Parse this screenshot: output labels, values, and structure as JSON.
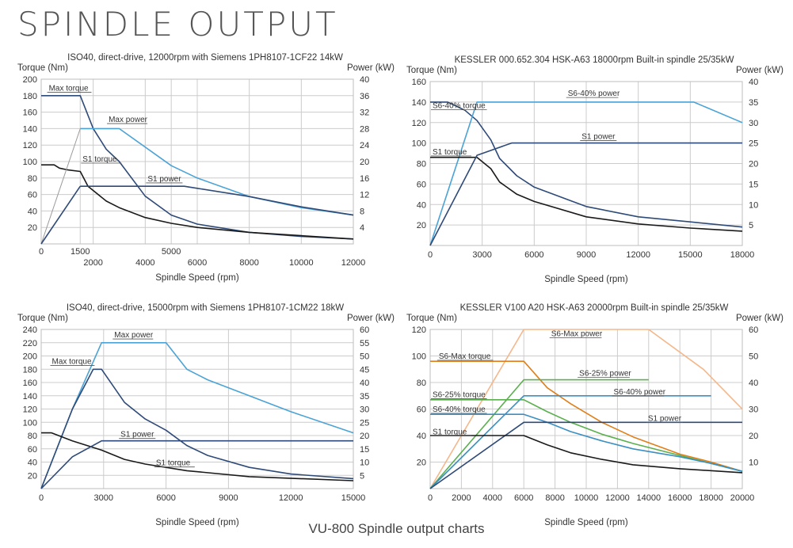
{
  "page": {
    "title": "SPINDLE OUTPUT",
    "caption": "VU-800 Spindle output charts"
  },
  "colors": {
    "grid": "#cccccc",
    "frame": "#bdbdbd",
    "label_line": "#555555",
    "dark": "#1a1a1a",
    "navy": "#2e4a78",
    "sky": "#4aa3d6",
    "teal": "#3b8fc2",
    "green": "#59b04c",
    "orange": "#e07f1a",
    "peach": "#f5b78a",
    "gray": "#9a9a9a"
  },
  "chart_data": [
    {
      "type": "line",
      "title": "ISO40, direct-drive,  12000rpm with Siemens 1PH8107-1CF22 14kW",
      "ylabel": "Torque (Nm)",
      "y2label": "Power (kW)",
      "xlabel": "Spindle  Speed  (rpm)",
      "xlim": [
        0,
        12000
      ],
      "ylim": [
        0,
        200
      ],
      "y2lim": [
        0,
        40
      ],
      "yticks": [
        20,
        40,
        60,
        80,
        100,
        120,
        140,
        160,
        180,
        200
      ],
      "y2ticks": [
        4,
        8,
        12,
        16,
        20,
        24,
        28,
        32,
        36,
        40
      ],
      "xticks_upper": [
        0,
        1500,
        5000
      ],
      "xticks_lower": [
        2000,
        4000,
        6000,
        8000,
        10000,
        12000
      ],
      "series": [
        {
          "name": "Max torque",
          "axis": "left",
          "color": "navy",
          "points": [
            [
              0,
              180
            ],
            [
              1500,
              180
            ],
            [
              2000,
              140
            ],
            [
              2500,
              115
            ],
            [
              3000,
              100
            ],
            [
              4000,
              58
            ],
            [
              5000,
              35
            ],
            [
              6000,
              24
            ],
            [
              8000,
              14
            ],
            [
              10000,
              9
            ],
            [
              12000,
              6
            ]
          ]
        },
        {
          "name": "Max power",
          "axis": "right",
          "color": "sky",
          "points": [
            [
              1500,
              28
            ],
            [
              3000,
              28
            ],
            [
              5000,
              19
            ],
            [
              6000,
              16
            ],
            [
              8000,
              11.5
            ],
            [
              10000,
              8.8
            ],
            [
              12000,
              7
            ]
          ]
        },
        {
          "name": "S1 torque",
          "axis": "left",
          "color": "dark",
          "points": [
            [
              0,
              96
            ],
            [
              500,
              96
            ],
            [
              700,
              92
            ],
            [
              1000,
              90
            ],
            [
              1500,
              88
            ],
            [
              1800,
              70
            ],
            [
              2500,
              52
            ],
            [
              3000,
              44
            ],
            [
              4000,
              32
            ],
            [
              5000,
              25
            ],
            [
              6000,
              20
            ],
            [
              8000,
              14
            ],
            [
              10000,
              10
            ],
            [
              12000,
              6
            ]
          ]
        },
        {
          "name": "S1 power",
          "axis": "right",
          "color": "navy",
          "points": [
            [
              1500,
              14
            ],
            [
              5500,
              14
            ],
            [
              6000,
              13.5
            ],
            [
              8000,
              11.5
            ],
            [
              10000,
              9
            ],
            [
              12000,
              7
            ]
          ]
        },
        {
          "name": "",
          "axis": "right",
          "color": "gray",
          "points": [
            [
              0,
              0
            ],
            [
              1500,
              28
            ]
          ]
        },
        {
          "name": "",
          "axis": "right",
          "color": "navy",
          "points": [
            [
              0,
              0
            ],
            [
              1500,
              14
            ]
          ]
        }
      ],
      "labels": [
        {
          "text": "Max  torque",
          "x": 200,
          "y": 186
        },
        {
          "text": "Max  power",
          "x": 2500,
          "y": 148
        },
        {
          "text": "S1  torque",
          "x": 1500,
          "y": 100
        },
        {
          "text": "S1  power",
          "x": 4000,
          "y": 76
        }
      ]
    },
    {
      "type": "line",
      "title": "KESSLER  000.652.304  HSK-A63  18000rpm  Built-in  spindle  25/35kW",
      "ylabel": "Torque (Nm)",
      "y2label": "Power (kW)",
      "xlabel": "Spindle  Speed  (rpm)",
      "xlim": [
        0,
        18000
      ],
      "ylim": [
        0,
        160
      ],
      "y2lim": [
        0,
        40
      ],
      "yticks": [
        20,
        40,
        60,
        80,
        100,
        120,
        140,
        160
      ],
      "y2ticks": [
        5,
        10,
        15,
        20,
        25,
        30,
        35,
        40
      ],
      "xticks_lower": [
        0,
        3000,
        6000,
        9000,
        12000,
        15000,
        18000
      ],
      "series": [
        {
          "name": "S6-40%  torque",
          "axis": "left",
          "color": "navy",
          "points": [
            [
              0,
              140
            ],
            [
              1000,
              140
            ],
            [
              2000,
              132
            ],
            [
              2700,
              122
            ],
            [
              3500,
              103
            ],
            [
              4000,
              85
            ],
            [
              5000,
              68
            ],
            [
              6000,
              57
            ],
            [
              9000,
              38
            ],
            [
              12000,
              28
            ],
            [
              15000,
              23
            ],
            [
              18000,
              18
            ]
          ]
        },
        {
          "name": "S6-40%  power",
          "axis": "right",
          "color": "sky",
          "points": [
            [
              0,
              0
            ],
            [
              2700,
              35
            ],
            [
              15200,
              35
            ],
            [
              18000,
              30
            ]
          ]
        },
        {
          "name": "S1  torque",
          "axis": "left",
          "color": "dark",
          "points": [
            [
              0,
              86
            ],
            [
              2700,
              86
            ],
            [
              3500,
              75
            ],
            [
              4000,
              62
            ],
            [
              5000,
              50
            ],
            [
              6000,
              43
            ],
            [
              9000,
              28
            ],
            [
              12000,
              21
            ],
            [
              15000,
              17
            ],
            [
              18000,
              14
            ]
          ]
        },
        {
          "name": "S1  power",
          "axis": "right",
          "color": "navy",
          "points": [
            [
              0,
              0
            ],
            [
              2700,
              22
            ],
            [
              4700,
              25
            ],
            [
              18000,
              25
            ]
          ]
        }
      ],
      "labels": [
        {
          "text": "S6-40%  power",
          "x": 7800,
          "y": 146
        },
        {
          "text": "S6-40%  torque",
          "x": 0,
          "y": 134
        },
        {
          "text": "S1  power",
          "x": 8600,
          "y": 104
        },
        {
          "text": "S1  torque",
          "x": 0,
          "y": 89
        }
      ]
    },
    {
      "type": "line",
      "title": "ISO40, direct-drive,  15000rpm with Siemens 1PH8107-1CM22 18kW",
      "ylabel": "Torque (Nm)",
      "y2label": "Power (kW)",
      "xlabel": "Spindle  Speed  (rpm)",
      "xlim": [
        0,
        15000
      ],
      "ylim": [
        0,
        240
      ],
      "y2lim": [
        0,
        60
      ],
      "yticks": [
        20,
        40,
        60,
        80,
        100,
        120,
        140,
        160,
        180,
        200,
        220,
        240
      ],
      "y2ticks": [
        5,
        10,
        15,
        20,
        25,
        30,
        35,
        40,
        45,
        50,
        55,
        60
      ],
      "xticks_lower": [
        0,
        3000,
        6000,
        9000,
        12000,
        15000
      ],
      "series": [
        {
          "name": "Max power",
          "axis": "right",
          "color": "sky",
          "points": [
            [
              0,
              0
            ],
            [
              1500,
              30
            ],
            [
              2900,
              55
            ],
            [
              6000,
              55
            ],
            [
              7000,
              45
            ],
            [
              8000,
              41
            ],
            [
              10000,
              35
            ],
            [
              12000,
              29
            ],
            [
              15000,
              21
            ]
          ]
        },
        {
          "name": "Max torque",
          "axis": "left",
          "color": "navy",
          "points": [
            [
              0,
              0
            ],
            [
              1500,
              120
            ],
            [
              2500,
              180
            ],
            [
              2900,
              180
            ],
            [
              4000,
              130
            ],
            [
              5000,
              105
            ],
            [
              6000,
              88
            ],
            [
              7000,
              65
            ],
            [
              8000,
              50
            ],
            [
              10000,
              32
            ],
            [
              12000,
              22
            ],
            [
              15000,
              15
            ]
          ]
        },
        {
          "name": "S1 torque",
          "axis": "left",
          "color": "dark",
          "points": [
            [
              0,
              84
            ],
            [
              500,
              84
            ],
            [
              1500,
              72
            ],
            [
              2900,
              58
            ],
            [
              4000,
              44
            ],
            [
              5000,
              37
            ],
            [
              7000,
              27
            ],
            [
              10000,
              18
            ],
            [
              15000,
              12
            ]
          ]
        },
        {
          "name": "S1 power",
          "axis": "right",
          "color": "navy",
          "points": [
            [
              0,
              0
            ],
            [
              1500,
              12
            ],
            [
              2900,
              18
            ],
            [
              15000,
              18
            ]
          ]
        }
      ],
      "labels": [
        {
          "text": "Max  power",
          "x": 3400,
          "y": 228
        },
        {
          "text": "Max  torque",
          "x": 400,
          "y": 188
        },
        {
          "text": "S1  power",
          "x": 3700,
          "y": 78
        },
        {
          "text": "S1  torque",
          "x": 5400,
          "y": 35
        }
      ]
    },
    {
      "type": "line",
      "title": "KESSLER  V100  A20  HSK-A63  20000rpm  Built-in  spindle  25/35kW",
      "ylabel": "Torque (Nm)",
      "y2label": "Power (kW)",
      "xlabel": "Spindle  Speed  (rpm)",
      "xlim": [
        0,
        20000
      ],
      "ylim": [
        0,
        120
      ],
      "y2lim": [
        0,
        60
      ],
      "yticks": [
        20,
        40,
        60,
        80,
        100,
        120
      ],
      "y2ticks": [
        10,
        20,
        30,
        40,
        50,
        60
      ],
      "xticks_lower": [
        0,
        2000,
        4000,
        6000,
        8000,
        10000,
        12000,
        14000,
        16000,
        18000,
        20000
      ],
      "series": [
        {
          "name": "S6-Max  power",
          "axis": "right",
          "color": "peach",
          "points": [
            [
              0,
              0
            ],
            [
              6000,
              60
            ],
            [
              14000,
              60
            ],
            [
              17500,
              45
            ],
            [
              20000,
              30
            ]
          ]
        },
        {
          "name": "S6-Max  torque",
          "axis": "left",
          "color": "orange",
          "points": [
            [
              0,
              96
            ],
            [
              6000,
              96
            ],
            [
              7500,
              76
            ],
            [
              9000,
              64
            ],
            [
              11000,
              50
            ],
            [
              13000,
              39
            ],
            [
              16000,
              26
            ],
            [
              18000,
              20
            ],
            [
              20000,
              13
            ]
          ]
        },
        {
          "name": "S6-25%  power",
          "axis": "right",
          "color": "green",
          "points": [
            [
              0,
              0
            ],
            [
              6000,
              41
            ],
            [
              14000,
              41
            ]
          ]
        },
        {
          "name": "S6-25%  torque",
          "axis": "left",
          "color": "green",
          "points": [
            [
              0,
              67
            ],
            [
              6000,
              67
            ],
            [
              7500,
              58
            ],
            [
              9000,
              50
            ],
            [
              11000,
              41
            ],
            [
              13000,
              34
            ],
            [
              16000,
              25
            ],
            [
              18000,
              19
            ],
            [
              20000,
              13
            ]
          ]
        },
        {
          "name": "S6-40%  power",
          "axis": "right",
          "color": "teal",
          "points": [
            [
              0,
              0
            ],
            [
              6000,
              35
            ],
            [
              18000,
              35
            ]
          ]
        },
        {
          "name": "S6-40%  torque",
          "axis": "left",
          "color": "teal",
          "points": [
            [
              0,
              56
            ],
            [
              6000,
              56
            ],
            [
              7500,
              50
            ],
            [
              9000,
              43
            ],
            [
              11000,
              36
            ],
            [
              13000,
              30
            ],
            [
              16000,
              24
            ],
            [
              18000,
              19
            ],
            [
              20000,
              13
            ]
          ]
        },
        {
          "name": "S1  power",
          "axis": "right",
          "color": "navy",
          "points": [
            [
              0,
              0
            ],
            [
              6000,
              25
            ],
            [
              20000,
              25
            ]
          ]
        },
        {
          "name": "S1  torque",
          "axis": "left",
          "color": "dark",
          "points": [
            [
              0,
              40
            ],
            [
              6000,
              40
            ],
            [
              7500,
              33
            ],
            [
              9000,
              27
            ],
            [
              11000,
              22
            ],
            [
              13000,
              18
            ],
            [
              16000,
              15
            ],
            [
              20000,
              12
            ]
          ]
        }
      ],
      "labels": [
        {
          "text": "S6-Max  power",
          "x": 7600,
          "y": 115
        },
        {
          "text": "S6-Max  torque",
          "x": 400,
          "y": 98
        },
        {
          "text": "S6-25%  power",
          "x": 9400,
          "y": 85
        },
        {
          "text": "S6-40%  power",
          "x": 11600,
          "y": 71
        },
        {
          "text": "S6-25%  torque",
          "x": 0,
          "y": 69
        },
        {
          "text": "S6-40%  torque",
          "x": 0,
          "y": 58
        },
        {
          "text": "S1  power",
          "x": 13800,
          "y": 51
        },
        {
          "text": "S1  torque",
          "x": 0,
          "y": 41
        }
      ]
    }
  ]
}
